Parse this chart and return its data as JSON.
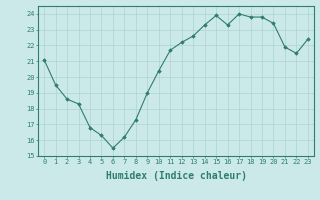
{
  "x": [
    0,
    1,
    2,
    3,
    4,
    5,
    6,
    7,
    8,
    9,
    10,
    11,
    12,
    13,
    14,
    15,
    16,
    17,
    18,
    19,
    20,
    21,
    22,
    23
  ],
  "y": [
    21.1,
    19.5,
    18.6,
    18.3,
    16.8,
    16.3,
    15.5,
    16.2,
    17.3,
    19.0,
    20.4,
    21.7,
    22.2,
    22.6,
    23.3,
    23.9,
    23.3,
    24.0,
    23.8,
    23.8,
    23.4,
    21.9,
    21.5,
    22.4
  ],
  "line_color": "#2e7d6e",
  "marker": "D",
  "marker_size": 1.8,
  "bg_color": "#cce9e9",
  "grid_color": "#add4d4",
  "xlabel": "Humidex (Indice chaleur)",
  "ylim": [
    15,
    24.5
  ],
  "xlim": [
    -0.5,
    23.5
  ],
  "yticks": [
    15,
    16,
    17,
    18,
    19,
    20,
    21,
    22,
    23,
    24
  ],
  "xticks": [
    0,
    1,
    2,
    3,
    4,
    5,
    6,
    7,
    8,
    9,
    10,
    11,
    12,
    13,
    14,
    15,
    16,
    17,
    18,
    19,
    20,
    21,
    22,
    23
  ],
  "tick_label_size": 5.0,
  "xlabel_size": 7.0
}
